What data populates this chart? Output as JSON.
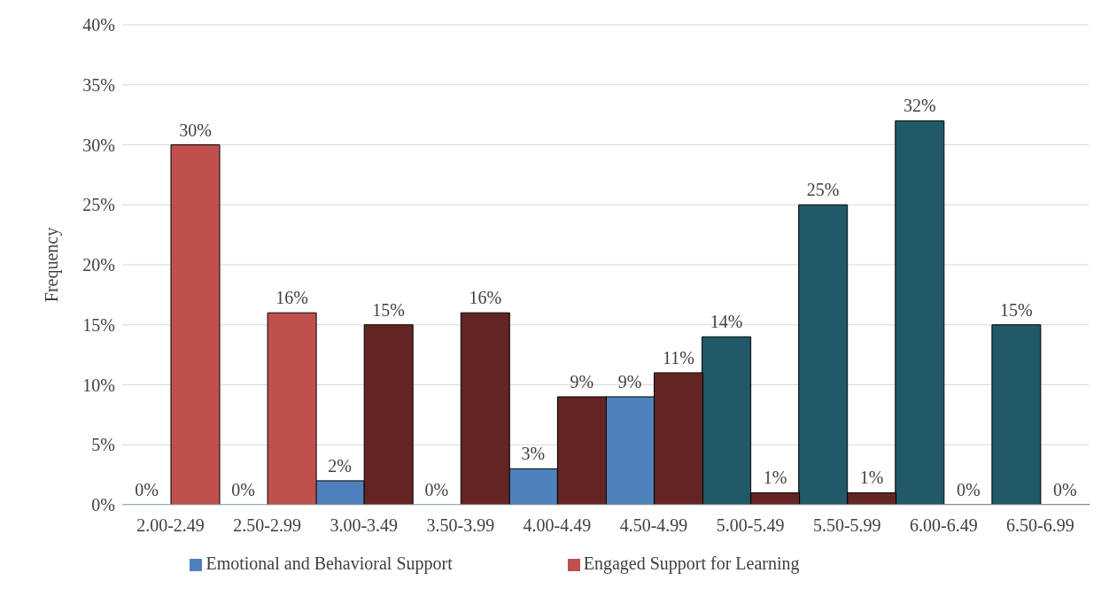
{
  "chart_data": {
    "type": "bar",
    "ylabel": "Frequency",
    "categories": [
      "2.00-2.49",
      "2.50-2.99",
      "3.00-3.49",
      "3.50-3.99",
      "4.00-4.49",
      "4.50-4.99",
      "5.00-5.49",
      "5.50-5.99",
      "6.00-6.49",
      "6.50-6.99"
    ],
    "series": [
      {
        "name": "Emotional and Behavioral Support",
        "color": "#4f81bd",
        "values": [
          0,
          0,
          2,
          0,
          3,
          9,
          14,
          25,
          32,
          15
        ],
        "value_labels": [
          "0%",
          "0%",
          "2%",
          "0%",
          "3%",
          "9%",
          "14%",
          "25%",
          "32%",
          "15%"
        ],
        "colors": [
          "#4f81bd",
          "#4f81bd",
          "#4f81bd",
          "#4f81bd",
          "#4f81bd",
          "#4f81bd",
          "#215968",
          "#215968",
          "#215968",
          "#215968"
        ]
      },
      {
        "name": "Engaged Support for Learning",
        "color": "#c0504d",
        "values": [
          30,
          16,
          15,
          16,
          9,
          11,
          1,
          1,
          0,
          0
        ],
        "value_labels": [
          "30%",
          "16%",
          "15%",
          "16%",
          "9%",
          "11%",
          "1%",
          "1%",
          "0%",
          "0%"
        ],
        "colors": [
          "#c0504d",
          "#c0504d",
          "#632523",
          "#632523",
          "#632523",
          "#632523",
          "#632523",
          "#632523",
          "#632523",
          "#632523"
        ]
      }
    ],
    "ylim": [
      0,
      40
    ],
    "yticks": [
      {
        "value": 0,
        "label": "0%"
      },
      {
        "value": 5,
        "label": "5%"
      },
      {
        "value": 10,
        "label": "10%"
      },
      {
        "value": 15,
        "label": "15%"
      },
      {
        "value": 20,
        "label": "20%"
      },
      {
        "value": 25,
        "label": "25%"
      },
      {
        "value": 30,
        "label": "30%"
      },
      {
        "value": 35,
        "label": "35%"
      },
      {
        "value": 40,
        "label": "40%"
      }
    ],
    "grid": "y",
    "legend": "bottom"
  }
}
